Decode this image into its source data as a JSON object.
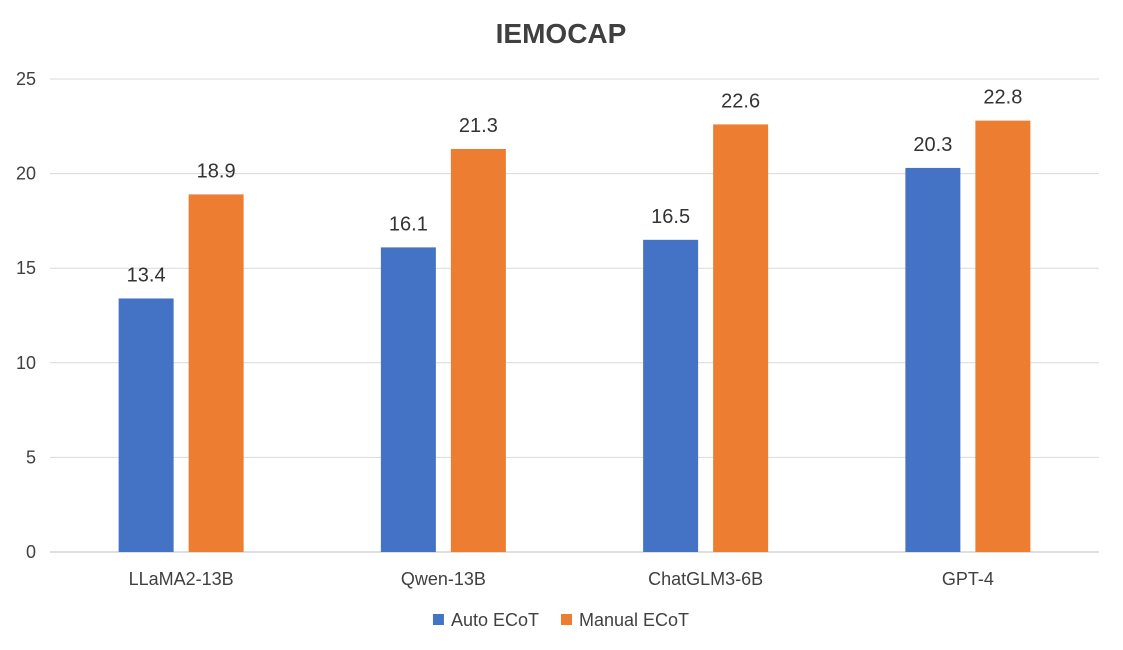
{
  "chart_data": {
    "type": "bar",
    "title": "IEMOCAP",
    "xlabel": "",
    "ylabel": "",
    "categories": [
      "LLaMA2-13B",
      "Qwen-13B",
      "ChatGLM3-6B",
      "GPT-4"
    ],
    "series": [
      {
        "name": "Auto ECoT",
        "color": "#4472C4",
        "values": [
          13.4,
          16.1,
          16.5,
          20.3
        ]
      },
      {
        "name": "Manual ECoT",
        "color": "#ED7D31",
        "values": [
          18.9,
          21.3,
          22.6,
          22.8
        ]
      }
    ],
    "ylim": [
      0,
      25
    ],
    "yticks": [
      0,
      5,
      10,
      15,
      20,
      25
    ],
    "grid": true,
    "legend": "bottom-center",
    "data_labels": true
  }
}
